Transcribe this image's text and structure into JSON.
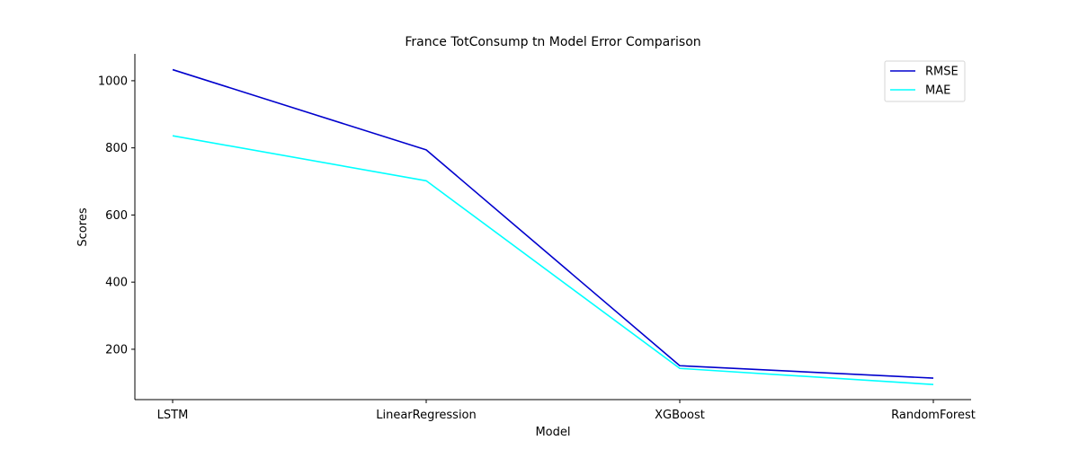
{
  "chart_data": {
    "type": "line",
    "title": "France TotConsump tn Model Error Comparison",
    "xlabel": "Model",
    "ylabel": "Scores",
    "categories": [
      "LSTM",
      "LinearRegression",
      "XGBoost",
      "RandomForest"
    ],
    "series": [
      {
        "name": "RMSE",
        "color": "#0000cd",
        "values": [
          1033,
          794,
          151,
          114
        ]
      },
      {
        "name": "MAE",
        "color": "#00ffff",
        "values": [
          836,
          702,
          143,
          95
        ]
      }
    ],
    "ylim": [
      50,
      1080
    ],
    "yticks": [
      200,
      400,
      600,
      800,
      1000
    ],
    "grid": false,
    "legend_position": "top-right"
  }
}
